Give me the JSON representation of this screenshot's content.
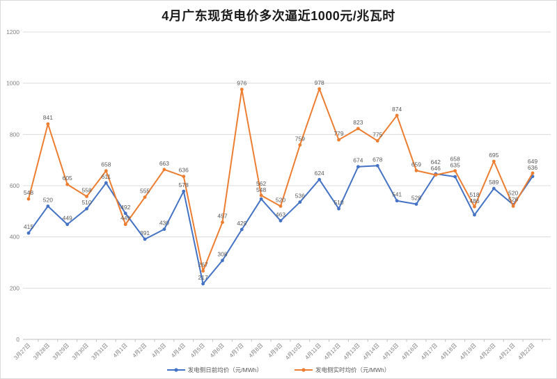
{
  "title": "4月广东现货电价多次逼近1000元/兆瓦时",
  "chart_data": {
    "type": "line",
    "categories": [
      "3月27日",
      "3月28日",
      "3月29日",
      "3月30日",
      "3月31日",
      "4月1日",
      "4月2日",
      "4月3日",
      "4月4日",
      "4月5日",
      "4月6日",
      "4月7日",
      "4月8日",
      "4月9日",
      "4月10日",
      "4月11日",
      "4月12日",
      "4月13日",
      "4月14日",
      "4月15日",
      "4月16日",
      "4月17日",
      "4月18日",
      "4月19日",
      "4月20日",
      "4月21日",
      "4月22日"
    ],
    "series": [
      {
        "name": "发电侧日前均价（元/MWh）",
        "color": "#4472C4",
        "values": [
          415,
          520,
          449,
          510,
          611,
          492,
          391,
          430,
          578,
          217,
          308,
          429,
          548,
          463,
          536,
          624,
          510,
          674,
          678,
          541,
          528,
          646,
          635,
          486,
          589,
          526,
          636
        ]
      },
      {
        "name": "发电侧实时均价（元/MWh）",
        "color": "#ED7D31",
        "values": [
          548,
          841,
          605,
          558,
          658,
          449,
          555,
          663,
          636,
          267,
          457,
          976,
          562,
          520,
          759,
          978,
          779,
          823,
          775,
          874,
          659,
          642,
          658,
          518,
          695,
          520,
          649
        ]
      }
    ],
    "title": "4月广东现货电价多次逼近1000元/兆瓦时",
    "xlabel": "",
    "ylabel": "",
    "ylim": [
      0,
      1200
    ],
    "yticks": [
      0,
      200,
      400,
      600,
      800,
      1000,
      1200
    ],
    "grid": true,
    "data_labels": true,
    "legend_position": "bottom"
  },
  "colors": {
    "grid": "#dcdcdc",
    "axis": "#bfbfbf",
    "tick_label": "#7f7f7f",
    "data_label": "#595959",
    "title": "#1a1a1a"
  }
}
